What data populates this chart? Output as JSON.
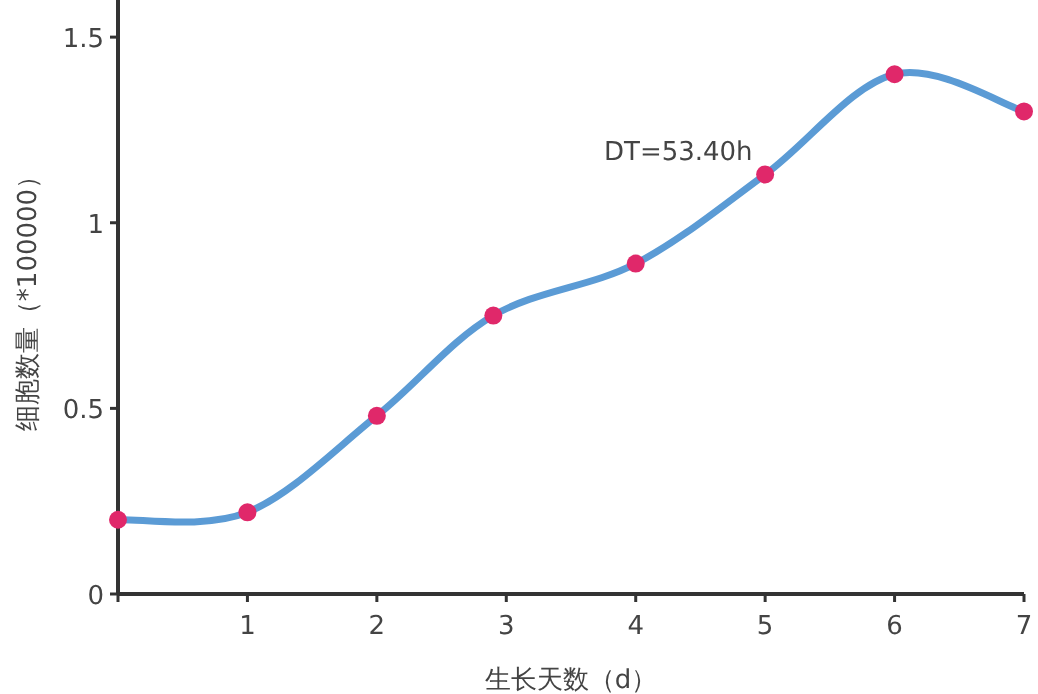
{
  "chart_data": {
    "type": "line",
    "xlabel": "生长天数（d）",
    "ylabel": "细胞数量（*100000）",
    "annotations": [
      "DT=53.40h"
    ],
    "series": [
      {
        "color": "#5b9bd5",
        "colors": [
          "#e0286a",
          "#e0286a",
          "#e0286a",
          "#e0286a",
          "#e0286a",
          "#e0286a",
          "#e0286a",
          "#e0286a"
        ],
        "x": [
          0,
          1,
          2,
          2.9,
          4,
          5,
          6,
          7
        ],
        "values": [
          0.2,
          0.22,
          0.48,
          0.75,
          0.89,
          1.13,
          1.4,
          1.3
        ]
      }
    ],
    "xlim": [
      0,
      7
    ],
    "ylim": [
      0,
      1.6
    ],
    "xticks": [
      {
        "value": 0,
        "label": null
      },
      1,
      2,
      3,
      4,
      5,
      6,
      7
    ],
    "yticks": [
      0,
      0.5,
      1,
      1.5
    ],
    "marker": "circle",
    "grid": false
  }
}
